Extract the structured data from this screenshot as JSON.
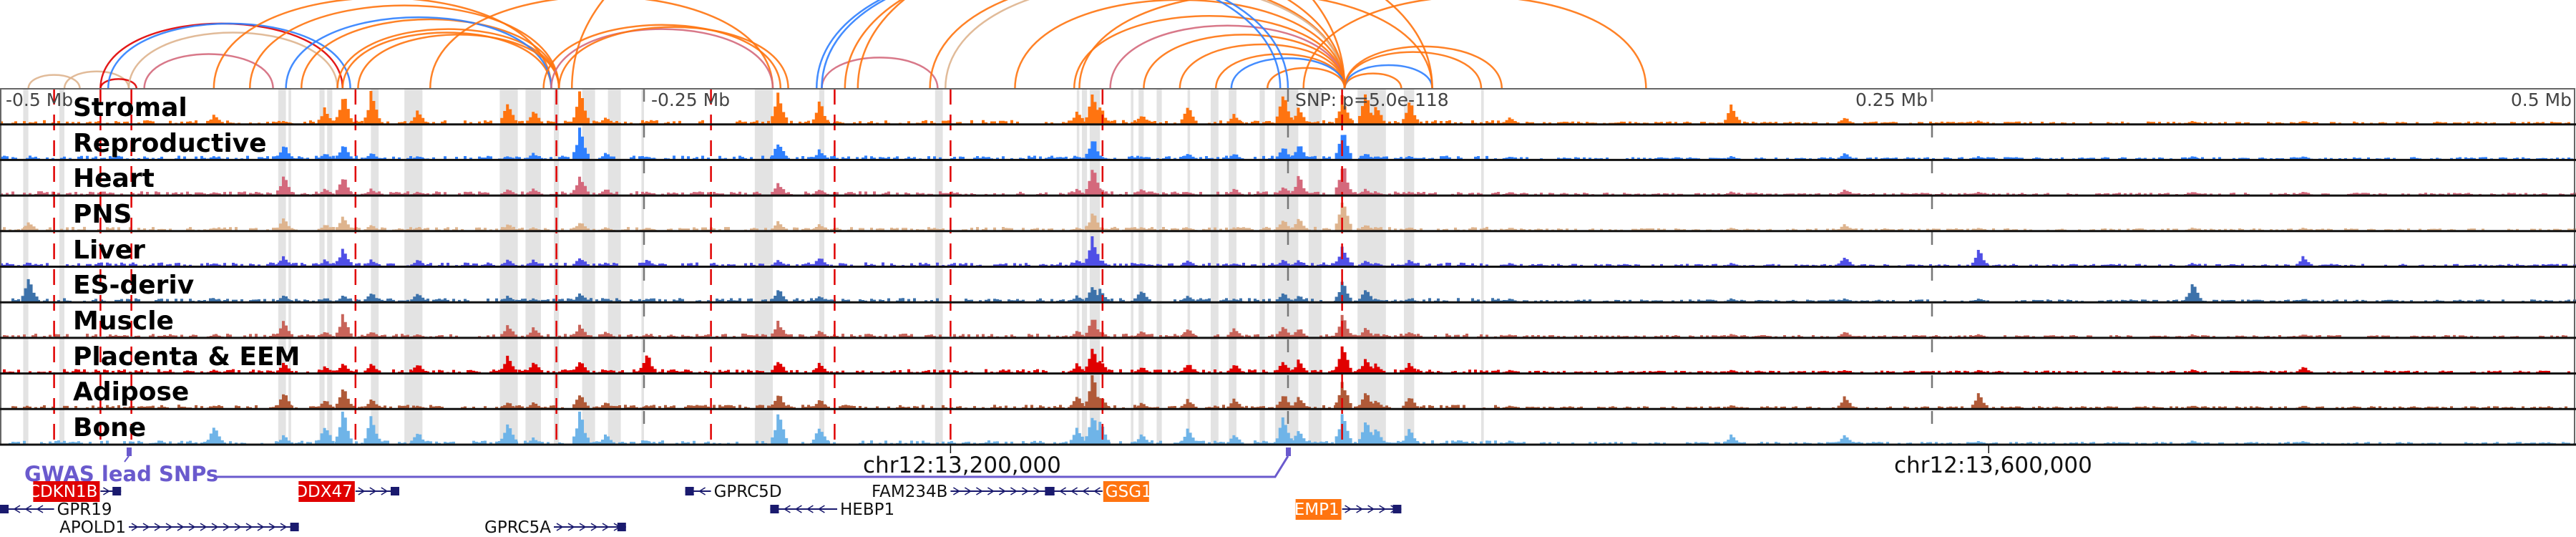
{
  "axis": {
    "labels": [
      "-0.5 Mb",
      "-0.25 Mb",
      "0.25 Mb",
      "0.5 Mb"
    ],
    "snp_label": "SNP: p=5.0e-118",
    "coord_labels": [
      "chr12:13,200,000",
      "chr12:13,600,000"
    ],
    "coord_ticks_kb": [
      -131,
      272
    ]
  },
  "gwas": {
    "label": "GWAS lead SNPs",
    "snps_kb": [
      -450,
      0
    ],
    "color": "#6a5acd"
  },
  "tracks": [
    {
      "name": "Stromal",
      "color": "#ff7410"
    },
    {
      "name": "Reproductive",
      "color": "#2f80ff"
    },
    {
      "name": "Heart",
      "color": "#d4697c"
    },
    {
      "name": "PNS",
      "color": "#deb48e"
    },
    {
      "name": "Liver",
      "color": "#4f4fe6"
    },
    {
      "name": "ES-deriv",
      "color": "#3d72aa"
    },
    {
      "name": "Muscle",
      "color": "#c8645a"
    },
    {
      "name": "Placenta & EEM",
      "color": "#e00000"
    },
    {
      "name": "Adipose",
      "color": "#b05a38"
    },
    {
      "name": "Bone",
      "color": "#6fb4e8"
    }
  ],
  "chart_data": {
    "type": "genome-browser",
    "xrange_kb": [
      -500,
      500
    ],
    "highlight_regions_kb": [
      [
        -491,
        -489
      ],
      [
        -477,
        -475
      ],
      [
        -392,
        -389
      ],
      [
        -388,
        -387
      ],
      [
        -376,
        -374
      ],
      [
        -373,
        -371
      ],
      [
        -356,
        -353
      ],
      [
        -343,
        -336
      ],
      [
        -306,
        -299
      ],
      [
        -296,
        -290
      ],
      [
        -285,
        -283
      ],
      [
        -274,
        -269
      ],
      [
        -264,
        -259
      ],
      [
        -251,
        -250
      ],
      [
        -207,
        -200
      ],
      [
        -182,
        -180
      ],
      [
        -137,
        -134
      ],
      [
        -82,
        -81
      ],
      [
        -80,
        -78
      ],
      [
        -77,
        -73
      ],
      [
        -61,
        -60
      ],
      [
        -58,
        -56
      ],
      [
        -51,
        -49
      ],
      [
        -39,
        -38
      ],
      [
        -30,
        -27
      ],
      [
        -23,
        -20
      ],
      [
        -11,
        -9
      ],
      [
        -5,
        4
      ],
      [
        8,
        13
      ],
      [
        27,
        38
      ],
      [
        45,
        49
      ],
      [
        75,
        76
      ]
    ],
    "snp_lines_kb": [
      -479,
      -461,
      -449,
      -362,
      -284,
      -224,
      -176,
      -131,
      -72,
      21
    ],
    "axis_ticks_kb": [
      -250,
      0,
      250
    ],
    "peaks": [
      {
        "kb": -489,
        "h": [
          0,
          0,
          0,
          0.3,
          0,
          0.8,
          0,
          0,
          0,
          0
        ]
      },
      {
        "kb": -417,
        "h": [
          0.3,
          0.1,
          0.1,
          0.1,
          0.1,
          0.1,
          0.1,
          0.1,
          0.1,
          0.6
        ]
      },
      {
        "kb": -390,
        "h": [
          0.1,
          0.5,
          0.6,
          0.4,
          0.3,
          0.2,
          0.5,
          0.3,
          0.5,
          0.3
        ]
      },
      {
        "kb": -374,
        "h": [
          0.5,
          0.2,
          0.2,
          0.2,
          0.2,
          0.1,
          0.2,
          0.2,
          0.3,
          0.6
        ]
      },
      {
        "kb": -367,
        "h": [
          1,
          0.5,
          0.6,
          0.5,
          0.6,
          0.2,
          0.7,
          0.3,
          0.7,
          1
        ]
      },
      {
        "kb": -356,
        "h": [
          1,
          0.2,
          0.2,
          0.2,
          0.2,
          0.3,
          0.2,
          0.3,
          0.3,
          0.9
        ]
      },
      {
        "kb": -338,
        "h": [
          0.4,
          0.1,
          0.1,
          0.1,
          0.2,
          0.3,
          0.1,
          0.3,
          0.1,
          0.4
        ]
      },
      {
        "kb": -303,
        "h": [
          0.7,
          0.1,
          0.2,
          0.2,
          0.2,
          0.2,
          0.4,
          0.6,
          0.2,
          0.7
        ]
      },
      {
        "kb": -293,
        "h": [
          0.4,
          0.2,
          0.2,
          0.1,
          0.2,
          0.1,
          0.3,
          0.4,
          0.2,
          0.2
        ]
      },
      {
        "kb": -275,
        "h": [
          1,
          1,
          0.6,
          0.3,
          0.3,
          0.3,
          0.4,
          0.4,
          0.5,
          1
        ]
      },
      {
        "kb": -265,
        "h": [
          0.2,
          0.2,
          0.2,
          0.1,
          0.1,
          0.1,
          0.2,
          0.1,
          0.2,
          0.3
        ]
      },
      {
        "kb": -249,
        "h": [
          0.1,
          0.1,
          0.1,
          0.1,
          0.2,
          0.1,
          0.1,
          0.6,
          0.1,
          0.1
        ]
      },
      {
        "kb": -198,
        "h": [
          1,
          0.6,
          0.4,
          0.3,
          0.2,
          0.4,
          0.5,
          0.4,
          0.5,
          1
        ]
      },
      {
        "kb": -182,
        "h": [
          0.7,
          0.3,
          0.2,
          0.2,
          0.3,
          0.2,
          0.2,
          0.3,
          0.3,
          0.6
        ]
      },
      {
        "kb": -82,
        "h": [
          0.4,
          0.1,
          0.2,
          0.1,
          0.2,
          0.2,
          0.2,
          0.3,
          0.4,
          0.5
        ]
      },
      {
        "kb": -76,
        "h": [
          1,
          0.7,
          0.9,
          0.6,
          0.9,
          0.5,
          0.7,
          0.9,
          1,
          1
        ]
      },
      {
        "kb": -73,
        "h": [
          0.5,
          0.1,
          0.2,
          0.1,
          0.2,
          0.4,
          0.2,
          0.4,
          0.4,
          0.8
        ]
      },
      {
        "kb": -57,
        "h": [
          0.3,
          0.1,
          0.2,
          0.1,
          0.1,
          0.4,
          0.2,
          0.2,
          0.2,
          0.3
        ]
      },
      {
        "kb": -39,
        "h": [
          0.6,
          0.2,
          0.1,
          0.1,
          0.2,
          0.2,
          0.3,
          0.3,
          0.3,
          0.5
        ]
      },
      {
        "kb": -21,
        "h": [
          0.3,
          0.2,
          0.2,
          0.1,
          0.1,
          0.1,
          0.3,
          0.3,
          0.3,
          0.3
        ]
      },
      {
        "kb": -2,
        "h": [
          1,
          0.4,
          0.3,
          0.4,
          0.2,
          0.3,
          0.4,
          0.4,
          0.5,
          0.9
        ]
      },
      {
        "kb": 4,
        "h": [
          0.5,
          0.5,
          0.6,
          0.4,
          0.2,
          0.2,
          0.3,
          0.4,
          0.4,
          0.5
        ]
      },
      {
        "kb": 21,
        "h": [
          0.9,
          1,
          1,
          1,
          0.6,
          0.6,
          0.7,
          0.9,
          0.9,
          1
        ]
      },
      {
        "kb": 30,
        "h": [
          1,
          0.2,
          0.2,
          0.2,
          0.2,
          0.4,
          0.3,
          0.5,
          0.5,
          0.8
        ]
      },
      {
        "kb": 34,
        "h": [
          0.6,
          0.1,
          0.1,
          0.1,
          0.1,
          0.1,
          0.1,
          0.3,
          0.3,
          0.5
        ]
      },
      {
        "kb": 47,
        "h": [
          0.7,
          0.1,
          0.1,
          0.1,
          0.2,
          0.1,
          0.2,
          0.3,
          0.4,
          0.5
        ]
      },
      {
        "kb": 86,
        "h": [
          0.2,
          0.1,
          0.1,
          0.1,
          0.1,
          0.1,
          0.1,
          0.1,
          0.1,
          0.1
        ]
      },
      {
        "kb": 172,
        "h": [
          0.6,
          0.1,
          0.1,
          0.1,
          0.1,
          0.1,
          0.1,
          0.1,
          0.1,
          0.3
        ]
      },
      {
        "kb": 216,
        "h": [
          0.2,
          0.2,
          0.2,
          0.2,
          0.3,
          0.1,
          0.2,
          0.1,
          0.4,
          0.3
        ]
      },
      {
        "kb": 268,
        "h": [
          0.1,
          0.1,
          0.1,
          0.1,
          0.5,
          0.1,
          0.1,
          0.1,
          0.5,
          0.1
        ]
      },
      {
        "kb": 351,
        "h": [
          0.1,
          0.1,
          0.1,
          0.1,
          0.1,
          0.6,
          0.1,
          0.1,
          0.1,
          0.1
        ]
      },
      {
        "kb": 394,
        "h": [
          0.1,
          0.1,
          0.1,
          0.1,
          0.3,
          0.1,
          0.1,
          0.2,
          0.1,
          0.1
        ]
      }
    ],
    "loops": [
      {
        "a": -489,
        "b": -469,
        "t": 3
      },
      {
        "a": -475,
        "b": -450,
        "t": 3
      },
      {
        "a": -461,
        "b": -447,
        "t": 7
      },
      {
        "a": -461,
        "b": -367,
        "t": 7
      },
      {
        "a": -458,
        "b": -364,
        "t": 1
      },
      {
        "a": -444,
        "b": -394,
        "t": 2
      },
      {
        "a": -450,
        "b": -369,
        "t": 3
      },
      {
        "a": -417,
        "b": -286,
        "t": 0
      },
      {
        "a": -403,
        "b": -283,
        "t": 0
      },
      {
        "a": -383,
        "b": -283,
        "t": 0
      },
      {
        "a": -369,
        "b": -283,
        "t": 0
      },
      {
        "a": -367,
        "b": -286,
        "t": 0
      },
      {
        "a": -389,
        "b": -286,
        "t": 1
      },
      {
        "a": -361,
        "b": -283,
        "t": 0
      },
      {
        "a": -333,
        "b": -200,
        "t": 0
      },
      {
        "a": -289,
        "b": -197,
        "t": 0
      },
      {
        "a": -286,
        "b": -200,
        "t": 2
      },
      {
        "a": -283,
        "b": -194,
        "t": 0
      },
      {
        "a": -181,
        "b": -136,
        "t": 2
      },
      {
        "a": -139,
        "b": 22,
        "t": 0
      },
      {
        "a": -133,
        "b": 22,
        "t": 3
      },
      {
        "a": -83,
        "b": 22,
        "t": 0
      },
      {
        "a": -69,
        "b": 22,
        "t": 2
      },
      {
        "a": -56,
        "b": 22,
        "t": 0
      },
      {
        "a": -42,
        "b": 22,
        "t": 0
      },
      {
        "a": -28,
        "b": 22,
        "t": 0
      },
      {
        "a": -22,
        "b": 22,
        "t": 1
      },
      {
        "a": -8,
        "b": 22,
        "t": 0
      },
      {
        "a": 22,
        "b": 44,
        "t": 0
      },
      {
        "a": 22,
        "b": 56,
        "t": 1
      },
      {
        "a": 22,
        "b": 75,
        "t": 0
      },
      {
        "a": 22,
        "b": 83,
        "t": 0
      },
      {
        "a": 6,
        "b": 139,
        "t": 0
      },
      {
        "a": -81,
        "b": 56,
        "t": 0
      },
      {
        "a": -106,
        "b": 22,
        "t": 0
      },
      {
        "a": -172,
        "b": 22,
        "t": 0
      },
      {
        "a": -278,
        "b": 22,
        "t": 0
      },
      {
        "a": -181,
        "b": 0,
        "t": 1
      },
      {
        "a": -183,
        "b": -3,
        "t": 1
      },
      {
        "a": -167,
        "b": 56,
        "t": 0
      }
    ]
  },
  "genes": [
    {
      "name": "CDKN1B",
      "start": -461,
      "end": -453,
      "strand": "+",
      "row": 0,
      "label": "left",
      "highlight": "#e00000"
    },
    {
      "name": "DDX47",
      "start": -362,
      "end": -345,
      "strand": "+",
      "row": 0,
      "label": "left",
      "highlight": "#e00000"
    },
    {
      "name": "GPRC5D",
      "start": -234,
      "end": -224,
      "strand": "-",
      "row": 0,
      "label": "right",
      "highlight": ""
    },
    {
      "name": "GPR19",
      "start": -500,
      "end": -479,
      "strand": "-",
      "row": 1,
      "label": "right",
      "highlight": ""
    },
    {
      "name": "APOLD1",
      "start": -450,
      "end": -384,
      "strand": "+",
      "row": 2,
      "label": "left",
      "highlight": ""
    },
    {
      "name": "GPRC5A",
      "start": -285,
      "end": -257,
      "strand": "+",
      "row": 2,
      "label": "left",
      "highlight": ""
    },
    {
      "name": "HEBP1",
      "start": -201,
      "end": -175,
      "strand": "-",
      "row": 1,
      "label": "right",
      "highlight": ""
    },
    {
      "name": "FAM234B",
      "start": -131,
      "end": -91,
      "strand": "+",
      "row": 0,
      "label": "left",
      "highlight": ""
    },
    {
      "name": "GSG1",
      "start": -94,
      "end": -72,
      "strand": "-",
      "row": 0,
      "label": "right",
      "highlight": "#ff7410"
    },
    {
      "name": "EMP1",
      "start": 21,
      "end": 44,
      "strand": "+",
      "row": 1,
      "label": "left",
      "highlight": "#ff7410"
    }
  ]
}
